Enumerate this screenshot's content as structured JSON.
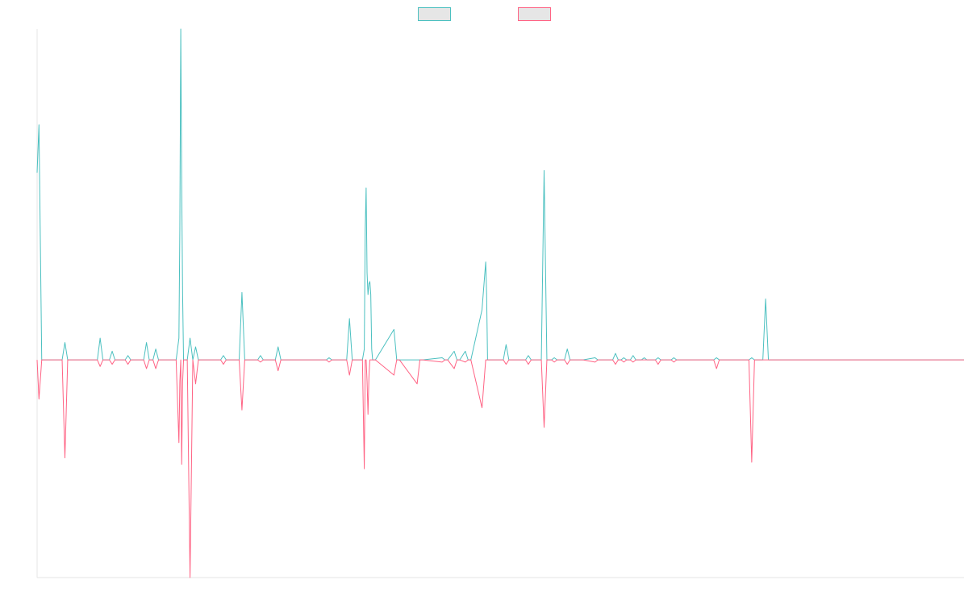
{
  "colors": {
    "series_a": "#4bc0c0",
    "series_b": "#ff6384",
    "axis": "#e6e6e6",
    "legend_fill": "#e6e6e6"
  },
  "chart_data": {
    "type": "line",
    "title": "",
    "xlabel": "",
    "ylabel": "",
    "x_range": [
      0,
      1000
    ],
    "ylim": [
      -100,
      152
    ],
    "grid": false,
    "legend": "top-center",
    "series": [
      {
        "name": "",
        "color": "#4bc0c0",
        "x": [
          0,
          2,
          5,
          27,
          30,
          33,
          65,
          68,
          71,
          78,
          81,
          84,
          95,
          98,
          101,
          115,
          118,
          121,
          125,
          128,
          131,
          150,
          153,
          154,
          155,
          156,
          157,
          158,
          159,
          162,
          165,
          168,
          171,
          174,
          177,
          198,
          201,
          204,
          218,
          221,
          224,
          238,
          241,
          244,
          257,
          260,
          263,
          312,
          315,
          318,
          334,
          337,
          340,
          351,
          353,
          354,
          355,
          356,
          357,
          358,
          359,
          360,
          361,
          362,
          363,
          365,
          385,
          388,
          391,
          410,
          413,
          416,
          437,
          440,
          443,
          450,
          453,
          456,
          462,
          465,
          468,
          480,
          484,
          485,
          486,
          487,
          488,
          489,
          490,
          503,
          506,
          509,
          527,
          530,
          533,
          544,
          547,
          550,
          555,
          558,
          561,
          569,
          572,
          575,
          578,
          583,
          586,
          589,
          602,
          605,
          608,
          621,
          624,
          627,
          630,
          633,
          636,
          640,
          643,
          646,
          652,
          655,
          658,
          667,
          670,
          673,
          684,
          687,
          690,
          730,
          733,
          736,
          768,
          771,
          774,
          783,
          786,
          789,
          790,
          1000
        ],
        "y": [
          86,
          108,
          0,
          0,
          8,
          0,
          0,
          10,
          0,
          0,
          4,
          0,
          0,
          2,
          0,
          0,
          8,
          0,
          0,
          5,
          0,
          0,
          10,
          60,
          152,
          80,
          30,
          0,
          0,
          0,
          10,
          0,
          6,
          0,
          0,
          0,
          2,
          0,
          0,
          31,
          0,
          0,
          2,
          0,
          0,
          6,
          0,
          0,
          1,
          0,
          0,
          19,
          0,
          0,
          5,
          60,
          79,
          40,
          30,
          35,
          36,
          30,
          5,
          0,
          0,
          0,
          14,
          0,
          0,
          0,
          0,
          0,
          1,
          0,
          0,
          4,
          0,
          0,
          4,
          0,
          0,
          23,
          45,
          30,
          0,
          0,
          0,
          0,
          0,
          0,
          7,
          0,
          0,
          2,
          0,
          0,
          87,
          0,
          0,
          1,
          0,
          0,
          5,
          0,
          0,
          0,
          0,
          0,
          1,
          0,
          0,
          0,
          3,
          0,
          0,
          1,
          0,
          0,
          2,
          0,
          0,
          1,
          0,
          0,
          1,
          0,
          0,
          1,
          0,
          0,
          1,
          0,
          0,
          1,
          0,
          0,
          28,
          0,
          0,
          0
        ]
      },
      {
        "name": "",
        "color": "#ff6384",
        "x": [
          0,
          2,
          5,
          27,
          30,
          33,
          65,
          68,
          71,
          78,
          81,
          84,
          95,
          98,
          101,
          115,
          118,
          121,
          125,
          128,
          131,
          150,
          153,
          154,
          155,
          156,
          157,
          158,
          159,
          162,
          165,
          168,
          171,
          174,
          177,
          198,
          201,
          204,
          218,
          221,
          224,
          238,
          241,
          244,
          257,
          260,
          263,
          312,
          315,
          318,
          334,
          337,
          340,
          351,
          353,
          354,
          355,
          356,
          357,
          358,
          359,
          360,
          361,
          362,
          363,
          365,
          385,
          388,
          391,
          410,
          413,
          416,
          437,
          440,
          443,
          450,
          453,
          456,
          462,
          465,
          468,
          480,
          484,
          485,
          486,
          487,
          488,
          489,
          490,
          503,
          506,
          509,
          527,
          530,
          533,
          544,
          547,
          550,
          555,
          558,
          561,
          569,
          572,
          575,
          578,
          583,
          586,
          589,
          602,
          605,
          608,
          621,
          624,
          627,
          630,
          633,
          636,
          640,
          643,
          646,
          652,
          655,
          658,
          667,
          670,
          673,
          684,
          687,
          690,
          730,
          733,
          736,
          768,
          771,
          774,
          783,
          786,
          789,
          790,
          1000
        ],
        "y": [
          0,
          -18,
          0,
          0,
          -45,
          0,
          0,
          -3,
          0,
          0,
          -2,
          0,
          0,
          -2,
          0,
          0,
          -4,
          0,
          0,
          -4,
          0,
          0,
          -38,
          -10,
          0,
          -48,
          -10,
          0,
          0,
          0,
          -100,
          0,
          -11,
          0,
          0,
          0,
          -2,
          0,
          0,
          -23,
          0,
          0,
          -1,
          0,
          0,
          -5,
          0,
          0,
          -1,
          0,
          0,
          -7,
          0,
          0,
          -50,
          0,
          0,
          -10,
          -25,
          -8,
          0,
          0,
          0,
          0,
          0,
          0,
          -7,
          0,
          0,
          -11,
          0,
          0,
          -1,
          0,
          0,
          -4,
          0,
          0,
          -1,
          0,
          0,
          -22,
          0,
          0,
          0,
          0,
          0,
          0,
          0,
          0,
          -2,
          0,
          0,
          -2,
          0,
          0,
          -31,
          0,
          0,
          -1,
          0,
          0,
          -2,
          0,
          0,
          0,
          0,
          0,
          -1,
          0,
          0,
          0,
          -2,
          0,
          0,
          -1,
          0,
          0,
          -1,
          0,
          0,
          0,
          0,
          0,
          -2,
          0,
          0,
          -1,
          0,
          0,
          -4,
          0,
          0,
          -47,
          0,
          0,
          0,
          0,
          0,
          0
        ]
      }
    ]
  }
}
